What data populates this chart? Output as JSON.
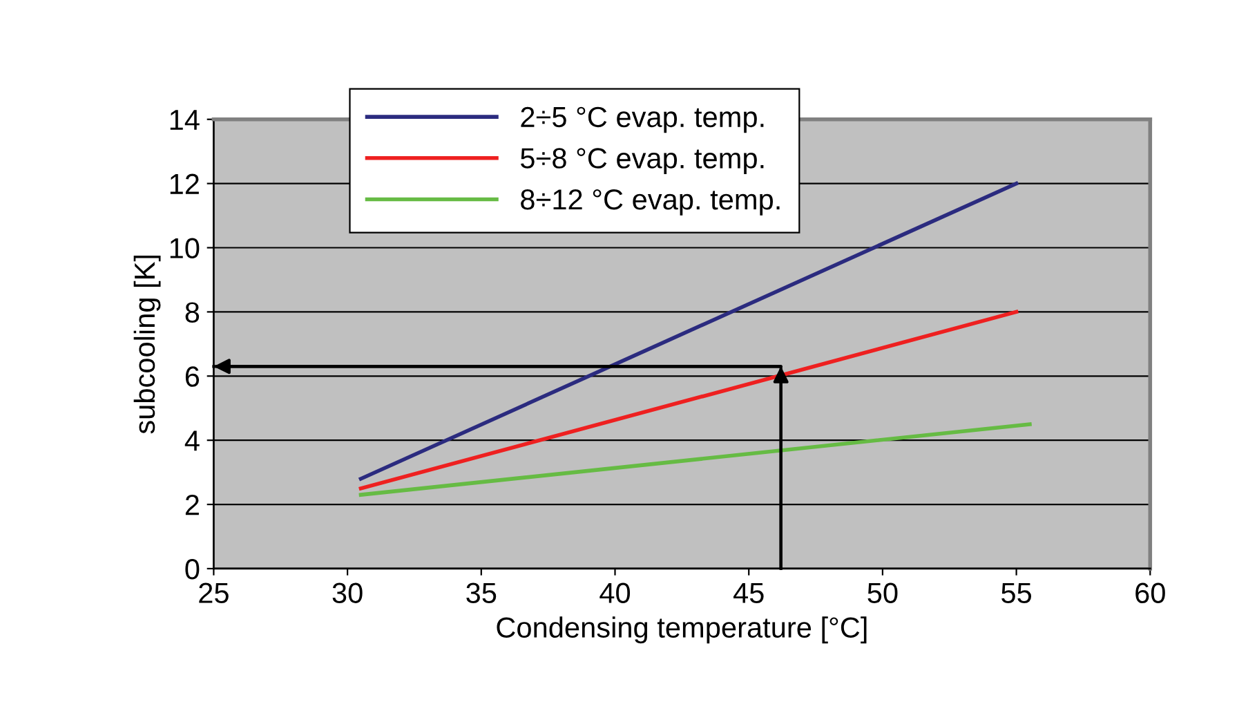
{
  "chart_data": {
    "type": "line",
    "xlabel": "Condensing temperature [°C]",
    "ylabel": "subcooling [K]",
    "xlim": [
      25,
      60
    ],
    "xticks": [
      25,
      30,
      35,
      40,
      45,
      50,
      55,
      60
    ],
    "ylim": [
      0,
      14
    ],
    "yticks": [
      0,
      2,
      4,
      6,
      8,
      10,
      12,
      14
    ],
    "grid": "y",
    "legend": "top left",
    "marker": "none",
    "line_style": "solid",
    "series": [
      {
        "name": "2÷5 °C evap. temp.",
        "color": "#2b2b7f",
        "x": [
          30.5,
          55
        ],
        "values": [
          2.8,
          12
        ]
      },
      {
        "name": "5÷8 °C evap. temp.",
        "color": "#ee2020",
        "x": [
          30.5,
          55
        ],
        "values": [
          2.5,
          8
        ]
      },
      {
        "name": "8÷12 °C evap. temp.",
        "color": "#66bb44",
        "x": [
          30.5,
          55.5
        ],
        "values": [
          2.3,
          4.5
        ]
      },
      {
        "color": "#000000",
        "x": [
          46.2,
          46.2,
          25
        ],
        "values": [
          0,
          6.3,
          6.3
        ]
      }
    ]
  }
}
